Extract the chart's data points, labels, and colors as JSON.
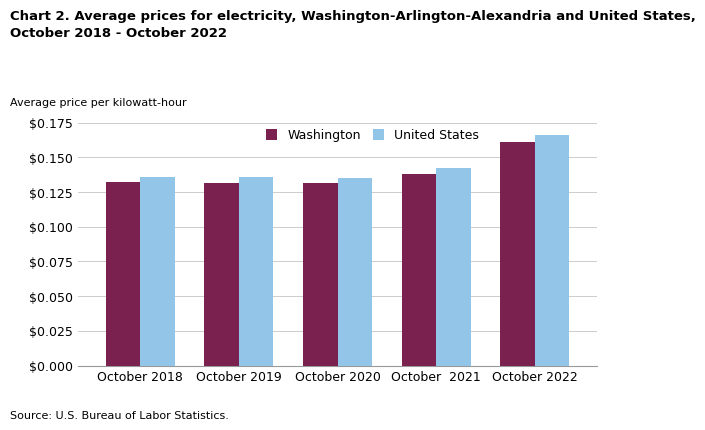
{
  "title": "Chart 2. Average prices for electricity, Washington-Arlington-Alexandria and United States,\nOctober 2018 - October 2022",
  "ylabel": "Average price per kilowatt-hour",
  "source": "Source: U.S. Bureau of Labor Statistics.",
  "categories": [
    "October 2018",
    "October 2019",
    "October 2020",
    "October  2021",
    "October 2022"
  ],
  "washington_values": [
    0.132,
    0.1315,
    0.1315,
    0.138,
    0.161
  ],
  "us_values": [
    0.136,
    0.136,
    0.135,
    0.142,
    0.166
  ],
  "washington_color": "#7B2150",
  "us_color": "#92C5E8",
  "ylim": [
    0,
    0.175
  ],
  "yticks": [
    0.0,
    0.025,
    0.05,
    0.075,
    0.1,
    0.125,
    0.15,
    0.175
  ],
  "legend_labels": [
    "Washington",
    "United States"
  ],
  "bar_width": 0.35,
  "background_color": "#ffffff",
  "grid_color": "#cccccc"
}
